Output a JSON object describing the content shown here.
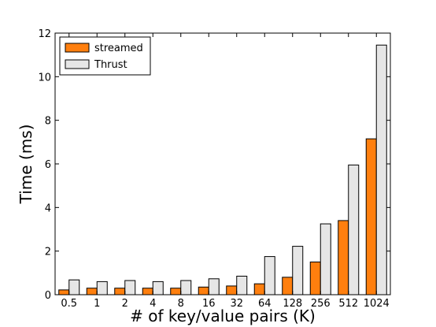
{
  "chart_data": {
    "type": "bar",
    "title": "",
    "xlabel": "# of key/value pairs (K)",
    "ylabel": "Time (ms)",
    "ylim": [
      0,
      12
    ],
    "yticks": [
      0,
      2,
      4,
      6,
      8,
      10,
      12
    ],
    "grid": false,
    "legend_position": "top-left",
    "categories": [
      "0.5",
      "1",
      "2",
      "4",
      "8",
      "16",
      "32",
      "64",
      "128",
      "256",
      "512",
      "1024"
    ],
    "series": [
      {
        "name": "streamed",
        "color": "#ff7f0e",
        "values": [
          0.22,
          0.3,
          0.3,
          0.3,
          0.3,
          0.35,
          0.4,
          0.5,
          0.8,
          1.5,
          3.4,
          7.15
        ]
      },
      {
        "name": "Thrust",
        "color": "#e6e6e6",
        "values": [
          0.68,
          0.6,
          0.65,
          0.6,
          0.65,
          0.73,
          0.85,
          1.75,
          2.22,
          3.25,
          5.95,
          11.45
        ]
      }
    ]
  }
}
